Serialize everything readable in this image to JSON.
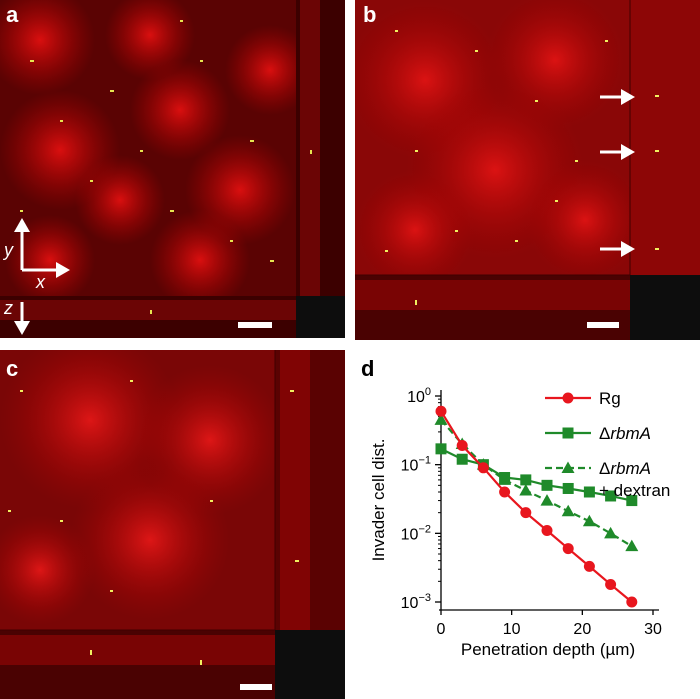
{
  "panels": {
    "a": {
      "letter": "a",
      "axis_y": "y",
      "axis_x": "x",
      "axis_z": "z"
    },
    "b": {
      "letter": "b"
    },
    "c": {
      "letter": "c"
    },
    "d": {
      "letter": "d"
    }
  },
  "chart_data": {
    "type": "line",
    "xlabel": "Penetration depth (µm)",
    "ylabel": "Invader cell dist.",
    "xlim": [
      0,
      30
    ],
    "ylim": [
      0.001,
      1
    ],
    "yscale": "log",
    "xticks": [
      "0",
      "10",
      "20",
      "30"
    ],
    "yticks": [
      {
        "base": "10",
        "exp": "0"
      },
      {
        "base": "10",
        "exp": "−1"
      },
      {
        "base": "10",
        "exp": "−2"
      },
      {
        "base": "10",
        "exp": "−3"
      }
    ],
    "legend_position": "top-right",
    "series": [
      {
        "name": "Rg",
        "color": "#e8161e",
        "marker": "circle",
        "dash": "solid",
        "x": [
          0,
          3,
          6,
          9,
          12,
          15,
          18,
          21,
          24,
          27
        ],
        "y": [
          0.6,
          0.19,
          0.09,
          0.04,
          0.02,
          0.011,
          0.006,
          0.0033,
          0.0018,
          0.001
        ]
      },
      {
        "name": "ΔrbmA",
        "color": "#1f8a2a",
        "marker": "square",
        "dash": "solid",
        "x": [
          0,
          3,
          6,
          9,
          12,
          15,
          18,
          21,
          24,
          27
        ],
        "y": [
          0.17,
          0.12,
          0.1,
          0.065,
          0.06,
          0.05,
          0.045,
          0.04,
          0.035,
          0.03
        ]
      },
      {
        "name": "ΔrbmA",
        "name_line2": "+ dextran",
        "color": "#1f8a2a",
        "marker": "triangle",
        "dash": "dashed",
        "x": [
          0,
          3,
          6,
          9,
          12,
          15,
          18,
          21,
          24,
          27
        ],
        "y": [
          0.45,
          0.2,
          0.1,
          0.06,
          0.042,
          0.03,
          0.021,
          0.015,
          0.01,
          0.0065
        ]
      }
    ]
  }
}
